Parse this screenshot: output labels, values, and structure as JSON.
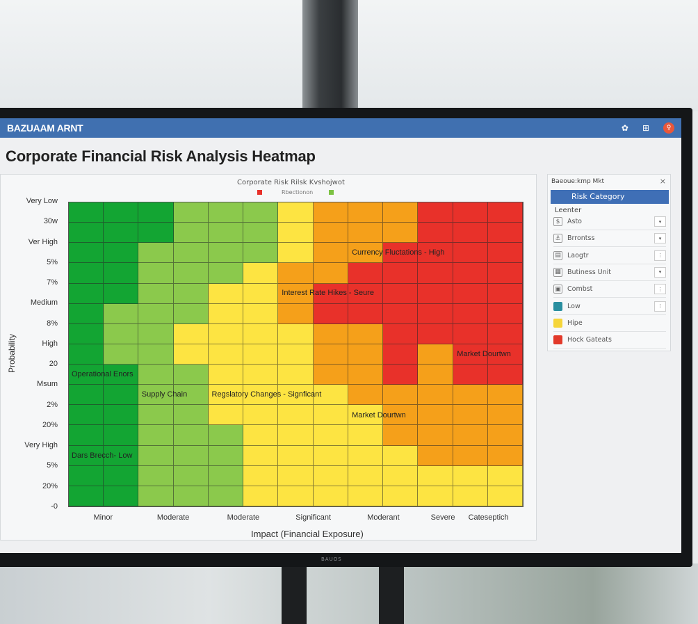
{
  "app": {
    "title": "BAZUAAM ARNT",
    "bezel_logo": "BAUOS"
  },
  "page_title": "Corporate Financial Risk Analysis Heatmap",
  "header_icons": [
    "settings-icon",
    "grid-icon",
    "user-avatar-icon"
  ],
  "side_panel": {
    "title": "Baeoue:kmp Mkt",
    "close": "×",
    "header": "Risk Category",
    "subheader": "Leenter",
    "items": [
      {
        "label": "Asto",
        "icon": "dollar-icon",
        "glyph": "$",
        "control": "▾",
        "swatch": ""
      },
      {
        "label": "Brrontss",
        "icon": "anchor-icon",
        "glyph": "⚓",
        "control": "▾",
        "swatch": ""
      },
      {
        "label": "Laogtr",
        "icon": "table-icon",
        "glyph": "▤",
        "control": "⋮",
        "swatch": ""
      },
      {
        "label": "Butiness Unit",
        "icon": "building-icon",
        "glyph": "▦",
        "control": "▾",
        "swatch": ""
      },
      {
        "label": "Combst",
        "icon": "box-icon",
        "glyph": "▣",
        "control": "⋮",
        "swatch": ""
      },
      {
        "label": "Low",
        "icon": "low-swatch-icon",
        "glyph": "",
        "control": "⋮",
        "swatch": "#2a8fa0"
      },
      {
        "label": "Hipe",
        "icon": "high-swatch-icon",
        "glyph": "",
        "control": "",
        "swatch": "#f5d53a"
      },
      {
        "label": "Hock Gateats",
        "icon": "critical-swatch-icon",
        "glyph": "",
        "control": "",
        "swatch": "#e2392a"
      }
    ]
  },
  "chart_data": {
    "type": "heatmap",
    "title": "Corporate Risk Rilsk Kvshojwot",
    "legend": [
      {
        "name": "",
        "color": "#e8312a"
      },
      {
        "name": "Rbectionon",
        "color": "#7cc242"
      }
    ],
    "xlabel": "Impact (Financial Exposure)",
    "ylabel": "Probability",
    "x_ticks": [
      {
        "label": "Minor",
        "at": 1
      },
      {
        "label": "Moderate",
        "at": 3
      },
      {
        "label": "Moderate",
        "at": 5
      },
      {
        "label": "Significant",
        "at": 7
      },
      {
        "label": "Moderant",
        "at": 9
      },
      {
        "label": "Severe",
        "at": 10.7
      },
      {
        "label": "Cateseptich",
        "at": 12
      }
    ],
    "y_ticks": [
      "Very Low",
      "30w",
      "Ver High",
      "5%",
      "7%",
      "Medium",
      "8%",
      "High",
      "20",
      "Msum",
      "2%",
      "20%",
      "Very High",
      "5%",
      "20%",
      "-0"
    ],
    "levels": {
      "G": "#13a533",
      "L": "#8bc94c",
      "Y": "#fde442",
      "O": "#f5a01a",
      "R": "#e8312a"
    },
    "columns": 13,
    "rows": [
      "GGGLLLYOOORRR",
      "GGGLLLYOOORRR",
      "GGLLLLYOORRRR",
      "GGLLLYOORRRRR",
      "GGLLYYORRRRRR",
      "GLLLYYORRRRRR",
      "GLLYYYYOORRRR",
      "GLLYYYYOOROR R",
      "GGLLYYYOOROR R",
      "GGLLYYYYOOOOO",
      "GGLLYYYYYOOOO",
      "GGLLLYYYYOOOO",
      "GGLLLYYYYYOOO",
      "GGLLLYYYYYYYY",
      "GGLLLYYYYYYYY"
    ],
    "annotations": [
      {
        "text": "Currency Fluctations - High",
        "row": 2,
        "col": 8
      },
      {
        "text": "Interest Rate Hikes - Seure",
        "row": 4,
        "col": 6
      },
      {
        "text": "Market Dourtwn",
        "row": 7,
        "col": 11
      },
      {
        "text": "Operational Enors",
        "row": 8,
        "col": 0
      },
      {
        "text": "Supply Chain",
        "row": 9,
        "col": 2
      },
      {
        "text": "Regslatory Changes - Signficant",
        "row": 9,
        "col": 4
      },
      {
        "text": "Market Dourtwn",
        "row": 10,
        "col": 8
      },
      {
        "text": "Dars Brecch- Low",
        "row": 12,
        "col": 0
      }
    ]
  }
}
